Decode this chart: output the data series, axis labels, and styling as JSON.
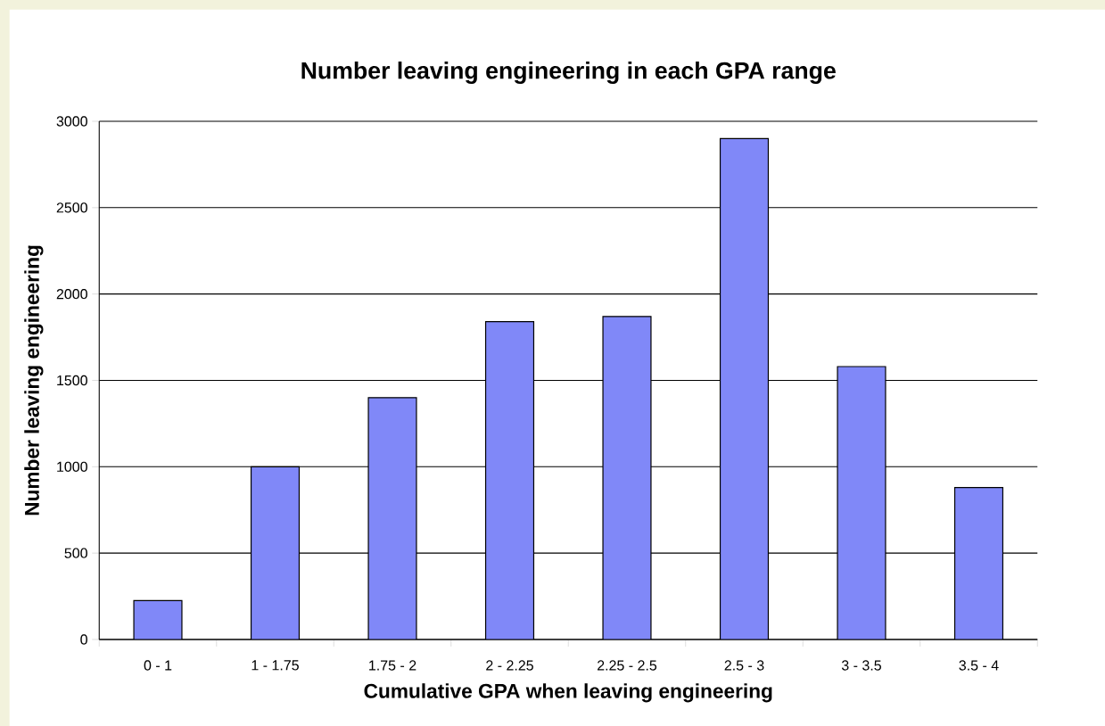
{
  "chart_data": {
    "type": "bar",
    "title": "Number leaving engineering in each GPA range",
    "xlabel": "Cumulative GPA when leaving engineering",
    "ylabel": "Number leaving engineering",
    "categories": [
      "0 - 1",
      "1 - 1.75",
      "1.75 - 2",
      "2 - 2.25",
      "2.25 - 2.5",
      "2.5 - 3",
      "3 - 3.5",
      "3.5 - 4"
    ],
    "values": [
      225,
      1000,
      1400,
      1840,
      1870,
      2900,
      1580,
      880
    ],
    "color": "#8088f8",
    "ylim": [
      0,
      3000
    ],
    "yticks": [
      0,
      500,
      1000,
      1500,
      2000,
      2500,
      3000
    ],
    "grid": "y"
  }
}
